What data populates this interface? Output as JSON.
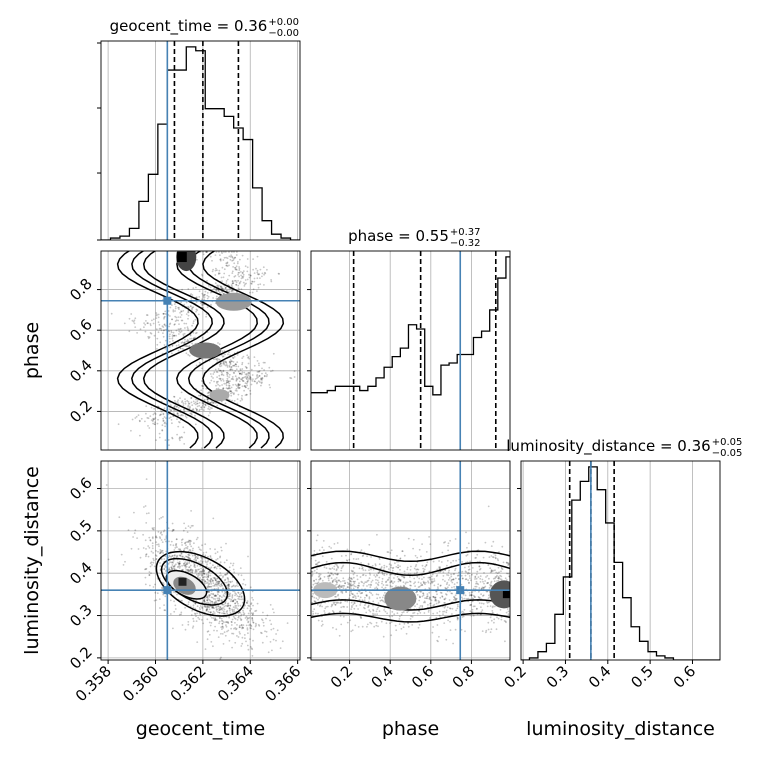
{
  "chart_data": {
    "type": "corner",
    "parameters": [
      "geocent_time",
      "phase",
      "luminosity_distance"
    ],
    "truths": {
      "geocent_time": 0.3605,
      "phase": 0.745,
      "luminosity_distance": 0.36
    },
    "truth_color": "#4682b4",
    "axis_labels": {
      "geocent_time": "geocent_time",
      "phase": "phase",
      "luminosity_distance": "luminosity_distance"
    },
    "ranges": {
      "geocent_time": [
        0.3577,
        0.3661
      ],
      "phase": [
        0.01,
        0.99
      ],
      "luminosity_distance": [
        0.195,
        0.665
      ]
    },
    "ticks": {
      "geocent_time": [
        "0.358",
        "0.360",
        "0.362",
        "0.364",
        "0.366"
      ],
      "phase_y": [
        "0.2",
        "0.4",
        "0.6",
        "0.8"
      ],
      "phase_x": [
        "0.2",
        "0.4",
        "0.6",
        "0.8"
      ],
      "luminosity_distance_y": [
        "0.2",
        "0.3",
        "0.4",
        "0.5",
        "0.6"
      ],
      "luminosity_distance_x": [
        "0.2",
        "0.3",
        "0.4",
        "0.5",
        "0.6"
      ]
    },
    "titles": {
      "geocent_time": {
        "label": "geocent_time = 0.36",
        "plus": "+0.00",
        "minus": "−0.00"
      },
      "phase": {
        "label": "phase = 0.55",
        "plus": "+0.37",
        "minus": "−0.32"
      },
      "luminosity_distance": {
        "label": "luminosity_distance = 0.36",
        "plus": "+0.05",
        "minus": "−0.05"
      }
    },
    "quantiles": {
      "geocent_time": [
        0.3608,
        0.362,
        0.3635
      ],
      "phase": [
        0.22,
        0.55,
        0.92
      ],
      "luminosity_distance": [
        0.31,
        0.36,
        0.415
      ]
    },
    "histograms": {
      "geocent_time": {
        "edges": [
          0.3577,
          0.3581,
          0.3585,
          0.3589,
          0.3593,
          0.3597,
          0.3601,
          0.3605,
          0.3609,
          0.3613,
          0.3617,
          0.3621,
          0.3625,
          0.3629,
          0.3633,
          0.3637,
          0.3641,
          0.3645,
          0.3649,
          0.3653,
          0.3657,
          0.3661
        ],
        "counts": [
          0,
          1,
          2,
          6,
          20,
          34,
          60,
          88,
          88,
          100,
          98,
          68,
          68,
          64,
          58,
          52,
          27,
          10,
          3,
          1,
          0
        ]
      },
      "phase": {
        "edges": [
          0.01,
          0.05,
          0.09,
          0.13,
          0.17,
          0.21,
          0.25,
          0.29,
          0.33,
          0.37,
          0.41,
          0.45,
          0.49,
          0.53,
          0.57,
          0.61,
          0.65,
          0.69,
          0.73,
          0.77,
          0.81,
          0.85,
          0.89,
          0.93,
          0.97,
          0.99
        ],
        "counts": [
          27,
          27,
          28,
          30,
          30,
          30,
          28,
          30,
          34,
          39,
          44,
          48,
          59,
          57,
          30,
          26,
          40,
          41,
          45,
          45,
          53,
          56,
          66,
          81,
          91
        ]
      },
      "luminosity_distance": {
        "edges": [
          0.195,
          0.215,
          0.235,
          0.255,
          0.275,
          0.295,
          0.315,
          0.335,
          0.355,
          0.375,
          0.395,
          0.415,
          0.435,
          0.455,
          0.475,
          0.495,
          0.515,
          0.535,
          0.555,
          0.575,
          0.595,
          0.615,
          0.635,
          0.665
        ],
        "counts": [
          0,
          1,
          4,
          8,
          22,
          40,
          77,
          86,
          93,
          82,
          66,
          47,
          30,
          16,
          9,
          4,
          2,
          1,
          0,
          0,
          0,
          0,
          0
        ]
      }
    }
  }
}
